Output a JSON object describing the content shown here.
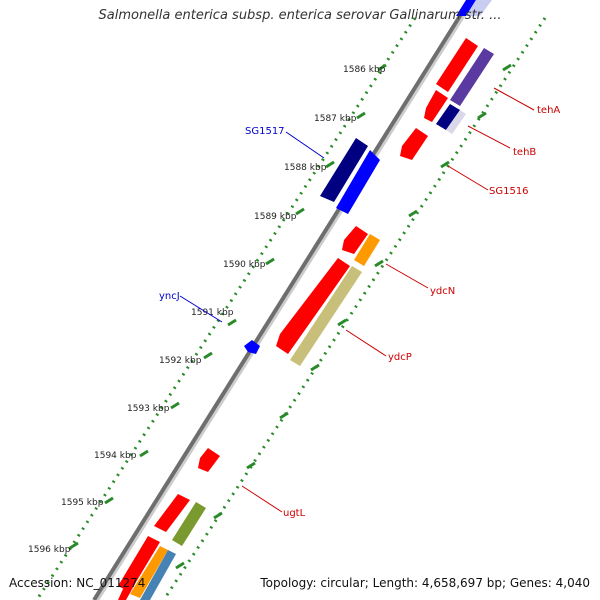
{
  "header": {
    "title": "Salmonella enterica subsp. enterica serovar Gallinarum str. ..."
  },
  "footer": {
    "accession": "Accession: NC_011274",
    "summary": "Topology: circular; Length: 4,658,697 bp; Genes: 4,040"
  },
  "ticks": [
    "1586 kbp",
    "1587 kbp",
    "1588 kbp",
    "1589 kbp",
    "1590 kbp",
    "1591 kbp",
    "1592 kbp",
    "1593 kbp",
    "1594 kbp",
    "1595 kbp",
    "1596 kbp"
  ],
  "genes": [
    {
      "name": "tehA",
      "strand": "reverse",
      "color": "#cc0000"
    },
    {
      "name": "tehB",
      "strand": "reverse",
      "color": "#cc0000"
    },
    {
      "name": "SG1516",
      "strand": "reverse",
      "color": "#cc0000"
    },
    {
      "name": "SG1517",
      "strand": "forward",
      "color": "#0000cc"
    },
    {
      "name": "ydcN",
      "strand": "reverse",
      "color": "#cc0000"
    },
    {
      "name": "yncJ",
      "strand": "forward",
      "color": "#0000cc"
    },
    {
      "name": "ydcP",
      "strand": "reverse",
      "color": "#cc0000"
    },
    {
      "name": "ugtL",
      "strand": "reverse",
      "color": "#cc0000"
    }
  ],
  "colors": {
    "backbone": "#888888",
    "tick_ring": "#2a8a2a",
    "feature_red": "#ff0000",
    "feature_blue": "#0000ff",
    "feature_navy": "#000080",
    "feature_purple": "#5a3aa0",
    "feature_khaki": "#c8c07a",
    "feature_orange": "#ff9900",
    "feature_olive": "#7a9a30",
    "feature_steel": "#4682b4"
  }
}
